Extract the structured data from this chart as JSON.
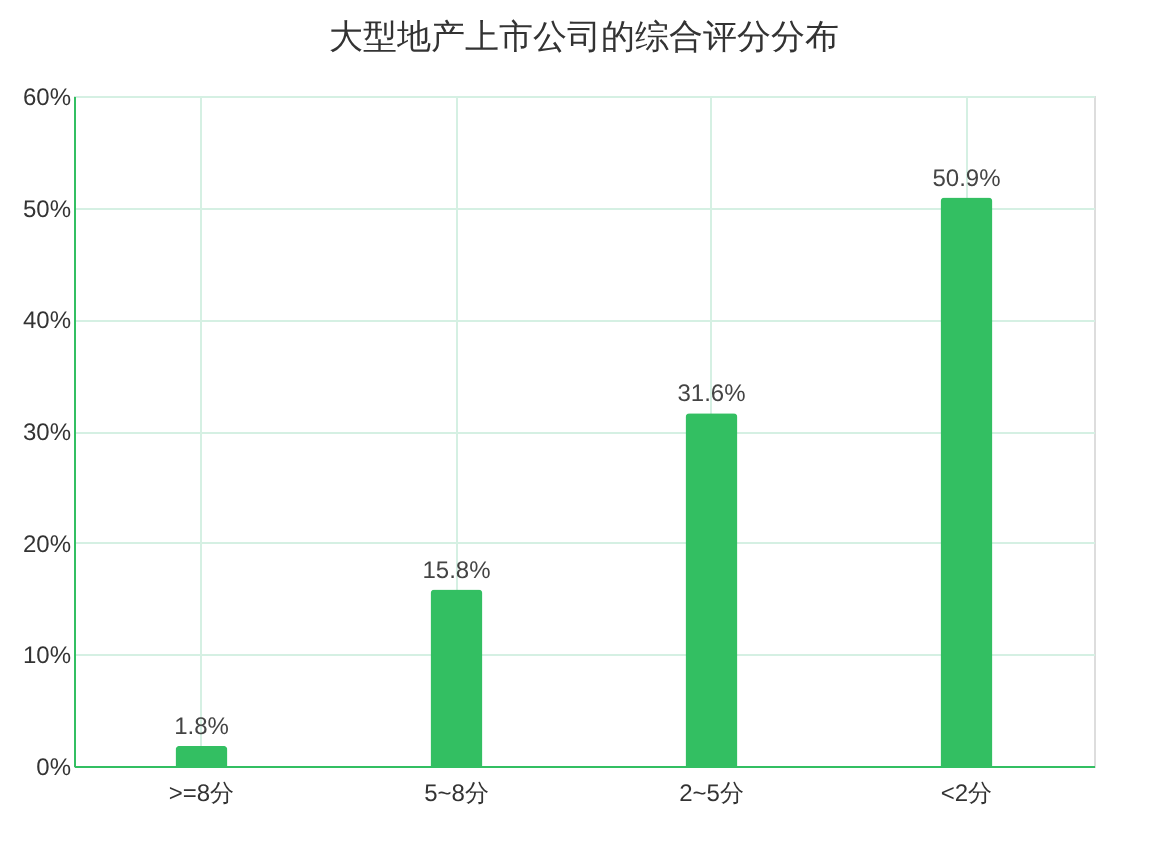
{
  "chart_data": {
    "type": "bar",
    "title": "大型地产上市公司的综合评分分布",
    "categories": [
      ">=8分",
      "5~8分",
      "2~5分",
      "<2分"
    ],
    "values": [
      1.8,
      15.8,
      31.6,
      50.9
    ],
    "value_labels": [
      "1.8%",
      "15.8%",
      "31.6%",
      "50.9%"
    ],
    "color": "#33bf62",
    "ylim": [
      0,
      60
    ],
    "yticks": [
      {
        "value": 0,
        "label": "0%"
      },
      {
        "value": 10,
        "label": "10%"
      },
      {
        "value": 20,
        "label": "20%"
      },
      {
        "value": 30,
        "label": "30%"
      },
      {
        "value": 40,
        "label": "40%"
      },
      {
        "value": 50,
        "label": "50%"
      },
      {
        "value": 60,
        "label": "60%"
      }
    ],
    "grid": true
  }
}
